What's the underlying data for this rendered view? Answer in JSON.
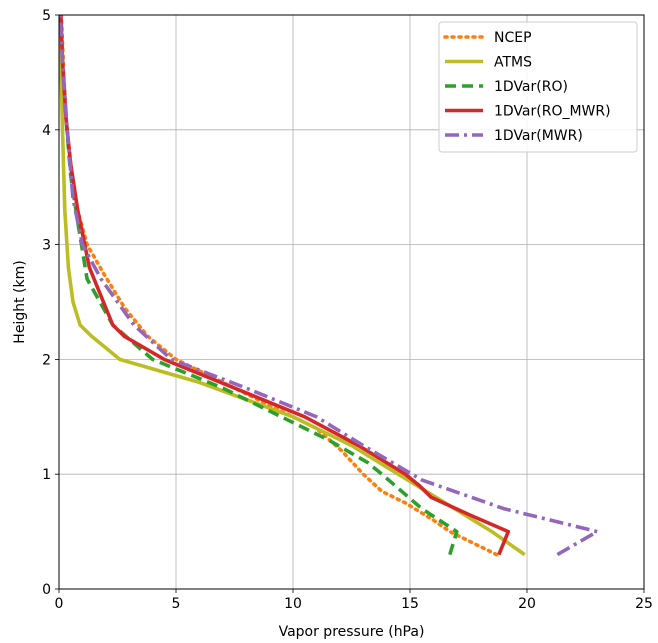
{
  "chart_data": {
    "type": "line",
    "title": "",
    "xlabel": "Vapor pressure (hPa)",
    "ylabel": "Height (km)",
    "xlim": [
      0,
      25
    ],
    "ylim": [
      0,
      5
    ],
    "xticks": [
      0,
      5,
      10,
      15,
      20,
      25
    ],
    "yticks": [
      0,
      1,
      2,
      3,
      4,
      5
    ],
    "grid": true,
    "legend_position": "top-right",
    "series": [
      {
        "name": "NCEP",
        "color": "#ff7f0e",
        "style": "dotted",
        "points": [
          [
            18.7,
            0.3
          ],
          [
            16.7,
            0.5
          ],
          [
            16.0,
            0.6
          ],
          [
            14.8,
            0.75
          ],
          [
            13.8,
            0.85
          ],
          [
            13.0,
            1.0
          ],
          [
            12.1,
            1.2
          ],
          [
            11.0,
            1.4
          ],
          [
            9.0,
            1.6
          ],
          [
            7.0,
            1.8
          ],
          [
            5.0,
            2.0
          ],
          [
            3.8,
            2.2
          ],
          [
            2.8,
            2.45
          ],
          [
            1.9,
            2.75
          ],
          [
            1.2,
            3.0
          ],
          [
            0.8,
            3.3
          ],
          [
            0.5,
            3.7
          ],
          [
            0.3,
            4.1
          ],
          [
            0.2,
            4.5
          ],
          [
            0.1,
            5.0
          ]
        ]
      },
      {
        "name": "ATMS",
        "color": "#bcbd22",
        "style": "solid",
        "points": [
          [
            19.9,
            0.3
          ],
          [
            18.5,
            0.5
          ],
          [
            16.5,
            0.75
          ],
          [
            14.5,
            1.0
          ],
          [
            12.5,
            1.25
          ],
          [
            10.0,
            1.5
          ],
          [
            6.0,
            1.8
          ],
          [
            2.6,
            2.0
          ],
          [
            1.4,
            2.2
          ],
          [
            0.9,
            2.3
          ],
          [
            0.6,
            2.5
          ],
          [
            0.4,
            2.8
          ],
          [
            0.25,
            3.3
          ],
          [
            0.15,
            4.0
          ],
          [
            0.08,
            4.6
          ],
          [
            0.05,
            5.0
          ]
        ]
      },
      {
        "name": "1DVar(RO)",
        "color": "#2ca02c",
        "style": "dashed",
        "points": [
          [
            16.7,
            0.3
          ],
          [
            17.0,
            0.5
          ],
          [
            15.5,
            0.7
          ],
          [
            13.8,
            1.0
          ],
          [
            13.2,
            1.1
          ],
          [
            11.5,
            1.3
          ],
          [
            9.5,
            1.5
          ],
          [
            7.0,
            1.75
          ],
          [
            4.0,
            2.0
          ],
          [
            2.3,
            2.3
          ],
          [
            1.2,
            2.7
          ],
          [
            0.8,
            3.2
          ],
          [
            0.5,
            3.6
          ],
          [
            0.3,
            4.1
          ],
          [
            0.15,
            4.6
          ],
          [
            0.08,
            5.0
          ]
        ]
      },
      {
        "name": "1DVar(RO_MWR)",
        "color": "#d62728",
        "style": "solid",
        "points": [
          [
            18.8,
            0.3
          ],
          [
            19.2,
            0.5
          ],
          [
            17.5,
            0.65
          ],
          [
            15.9,
            0.8
          ],
          [
            15.4,
            0.9
          ],
          [
            14.8,
            1.0
          ],
          [
            12.8,
            1.25
          ],
          [
            10.5,
            1.5
          ],
          [
            7.5,
            1.75
          ],
          [
            4.5,
            2.0
          ],
          [
            2.8,
            2.2
          ],
          [
            2.3,
            2.3
          ],
          [
            1.3,
            2.8
          ],
          [
            0.8,
            3.3
          ],
          [
            0.5,
            3.7
          ],
          [
            0.3,
            4.1
          ],
          [
            0.15,
            4.6
          ],
          [
            0.08,
            5.0
          ]
        ]
      },
      {
        "name": "1DVar(MWR)",
        "color": "#9467bd",
        "style": "dashdot",
        "points": [
          [
            21.3,
            0.3
          ],
          [
            23.0,
            0.5
          ],
          [
            19.0,
            0.7
          ],
          [
            15.5,
            0.95
          ],
          [
            13.0,
            1.25
          ],
          [
            11.0,
            1.5
          ],
          [
            8.0,
            1.75
          ],
          [
            4.8,
            2.0
          ],
          [
            3.2,
            2.3
          ],
          [
            1.8,
            2.7
          ],
          [
            1.0,
            3.0
          ],
          [
            0.6,
            3.4
          ],
          [
            0.35,
            4.0
          ],
          [
            0.15,
            4.6
          ],
          [
            0.05,
            5.0
          ]
        ]
      }
    ]
  }
}
